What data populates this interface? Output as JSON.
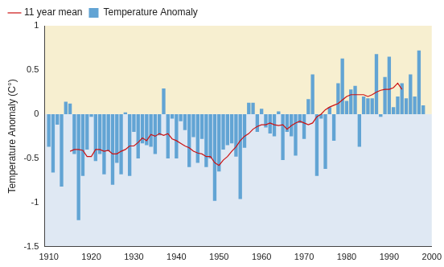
{
  "chart_data": {
    "type": "bar",
    "y_label": "Temperature Anomaly (C°)",
    "xlim": [
      1909,
      2000
    ],
    "xticks": [
      1910,
      1920,
      1930,
      1940,
      1950,
      1960,
      1970,
      1980,
      1990,
      2000
    ],
    "ylim": [
      -1.5,
      1
    ],
    "yticks": [
      -1.5,
      -1,
      -0.5,
      0,
      0.5,
      1
    ],
    "grid": false,
    "legend": "top",
    "series": [
      {
        "name": "Temperature Anomaly",
        "type": "bar",
        "color": "#62a4d4",
        "x": [
          1910,
          1911,
          1912,
          1913,
          1914,
          1915,
          1916,
          1917,
          1918,
          1919,
          1920,
          1921,
          1922,
          1923,
          1924,
          1925,
          1926,
          1927,
          1928,
          1929,
          1930,
          1931,
          1932,
          1933,
          1934,
          1935,
          1936,
          1937,
          1938,
          1939,
          1940,
          1941,
          1942,
          1943,
          1944,
          1945,
          1946,
          1947,
          1948,
          1949,
          1950,
          1951,
          1952,
          1953,
          1954,
          1955,
          1956,
          1957,
          1958,
          1959,
          1960,
          1961,
          1962,
          1963,
          1964,
          1965,
          1966,
          1967,
          1968,
          1969,
          1970,
          1971,
          1972,
          1973,
          1974,
          1975,
          1976,
          1977,
          1978,
          1979,
          1980,
          1981,
          1982,
          1983,
          1984,
          1985,
          1986,
          1987,
          1988,
          1989,
          1990,
          1991,
          1992,
          1993,
          1994,
          1995,
          1996,
          1997,
          1998
        ],
        "values": [
          -0.37,
          -0.66,
          -0.12,
          -0.82,
          0.14,
          0.12,
          -0.45,
          -1.2,
          -0.7,
          -0.4,
          -0.03,
          -0.53,
          -0.45,
          -0.68,
          -0.42,
          -0.8,
          -0.55,
          -0.68,
          0.02,
          -0.7,
          -0.2,
          -0.5,
          -0.33,
          -0.35,
          -0.37,
          -0.45,
          -0.24,
          0.29,
          -0.5,
          -0.05,
          -0.5,
          -0.08,
          -0.18,
          -0.6,
          -0.26,
          -0.55,
          -0.28,
          -0.6,
          -0.5,
          -0.98,
          -0.65,
          -0.4,
          -0.35,
          -0.33,
          -0.48,
          -0.96,
          -0.38,
          0.13,
          0.13,
          -0.2,
          0.06,
          -0.15,
          -0.22,
          -0.25,
          0.03,
          -0.52,
          -0.2,
          -0.25,
          -0.47,
          -0.1,
          -0.28,
          0.17,
          0.45,
          -0.7,
          -0.05,
          -0.62,
          0.08,
          -0.3,
          0.35,
          0.63,
          0.15,
          0.28,
          0.32,
          -0.37,
          0.2,
          0.18,
          0.18,
          0.68,
          -0.03,
          0.42,
          0.65,
          0.08,
          0.2,
          0.35,
          0.18,
          0.45,
          0.2,
          0.72,
          0.1
        ]
      },
      {
        "name": "11 year mean",
        "type": "line",
        "color": "#cc1111",
        "x": [
          1915,
          1916,
          1917,
          1918,
          1919,
          1920,
          1921,
          1922,
          1923,
          1924,
          1925,
          1926,
          1927,
          1928,
          1929,
          1930,
          1931,
          1932,
          1933,
          1934,
          1935,
          1936,
          1937,
          1938,
          1939,
          1940,
          1941,
          1942,
          1943,
          1944,
          1945,
          1946,
          1947,
          1948,
          1949,
          1950,
          1951,
          1952,
          1953,
          1954,
          1955,
          1956,
          1957,
          1958,
          1959,
          1960,
          1961,
          1962,
          1963,
          1964,
          1965,
          1966,
          1967,
          1968,
          1969,
          1970,
          1971,
          1972,
          1973,
          1974,
          1975,
          1976,
          1977,
          1978,
          1979,
          1980,
          1981,
          1982,
          1983,
          1984,
          1985,
          1986,
          1987,
          1988,
          1989,
          1990,
          1991,
          1992,
          1993
        ],
        "values": [
          -0.42,
          -0.4,
          -0.4,
          -0.41,
          -0.48,
          -0.48,
          -0.4,
          -0.4,
          -0.42,
          -0.41,
          -0.45,
          -0.45,
          -0.42,
          -0.4,
          -0.36,
          -0.36,
          -0.32,
          -0.27,
          -0.3,
          -0.23,
          -0.25,
          -0.22,
          -0.24,
          -0.22,
          -0.28,
          -0.3,
          -0.33,
          -0.36,
          -0.38,
          -0.42,
          -0.44,
          -0.45,
          -0.48,
          -0.48,
          -0.55,
          -0.58,
          -0.52,
          -0.48,
          -0.42,
          -0.37,
          -0.3,
          -0.25,
          -0.22,
          -0.17,
          -0.14,
          -0.12,
          -0.12,
          -0.1,
          -0.12,
          -0.13,
          -0.12,
          -0.17,
          -0.13,
          -0.1,
          -0.08,
          -0.1,
          -0.12,
          -0.1,
          -0.03,
          0,
          0.05,
          0.08,
          0.1,
          0.12,
          0.16,
          0.2,
          0.22,
          0.22,
          0.22,
          0.22,
          0.2,
          0.22,
          0.25,
          0.27,
          0.28,
          0.28,
          0.3,
          0.35,
          0.28
        ]
      }
    ]
  }
}
